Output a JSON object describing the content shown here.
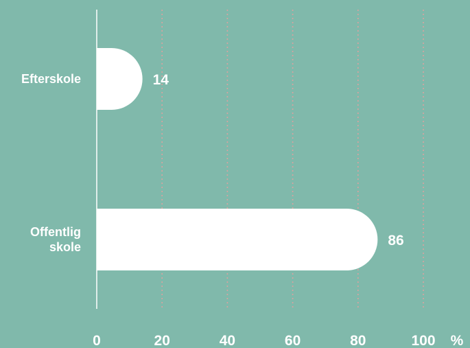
{
  "chart_data": {
    "type": "bar",
    "orientation": "horizontal",
    "categories": [
      [
        "Efterskole"
      ],
      [
        "Offentlig",
        "skole"
      ]
    ],
    "values": [
      14,
      86
    ],
    "data_labels": [
      "14",
      "86"
    ],
    "xlim": [
      0,
      100
    ],
    "x_ticks": [
      "0",
      "20",
      "40",
      "60",
      "80",
      "100"
    ],
    "x_unit": "%",
    "grid": "vertical dotted",
    "colors": {
      "background": "#80b9ab",
      "bar": "#ffffff",
      "grid": "#d9a3a0",
      "axis": "#ffffff",
      "text": "#ffffff"
    }
  }
}
